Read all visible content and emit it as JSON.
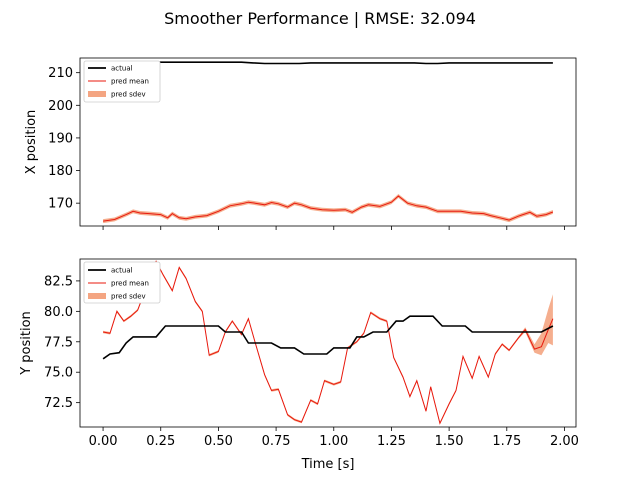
{
  "chart_data": {
    "type": "line",
    "title": "Smoother Performance | RMSE: 32.094",
    "xlabel": "Time [s]",
    "xlim": [
      -0.1,
      2.05
    ],
    "xticks": [
      "0.00",
      "0.25",
      "0.50",
      "0.75",
      "1.00",
      "1.25",
      "1.50",
      "1.75",
      "2.00"
    ],
    "colors": {
      "actual": "#000000",
      "pred_mean": "#e8190e",
      "pred_sdev": "#f4a582"
    },
    "panels": [
      {
        "ylabel": "X position",
        "ylim": [
          163,
          214.5
        ],
        "yticks": [
          "170",
          "180",
          "190",
          "200",
          "210"
        ],
        "legend_position": "top-left",
        "legend": [
          "actual",
          "pred mean",
          "pred sdev"
        ],
        "actual": {
          "x": [
            0.0,
            0.1,
            0.2,
            0.3,
            0.4,
            0.5,
            0.6,
            0.65,
            0.7,
            0.8,
            0.85,
            0.9,
            1.0,
            1.1,
            1.2,
            1.3,
            1.35,
            1.4,
            1.45,
            1.5,
            1.6,
            1.7,
            1.8,
            1.9,
            1.95
          ],
          "y": [
            212.5,
            213.0,
            213.2,
            213.2,
            213.2,
            213.2,
            213.2,
            213.0,
            212.8,
            212.8,
            212.8,
            213.0,
            213.0,
            213.0,
            213.0,
            213.0,
            213.0,
            212.8,
            212.8,
            213.0,
            213.0,
            213.0,
            213.0,
            213.0,
            213.0
          ]
        },
        "pred_mean": {
          "x": [
            0.0,
            0.05,
            0.1,
            0.13,
            0.16,
            0.2,
            0.25,
            0.28,
            0.3,
            0.33,
            0.36,
            0.4,
            0.45,
            0.5,
            0.55,
            0.6,
            0.63,
            0.66,
            0.7,
            0.73,
            0.76,
            0.8,
            0.83,
            0.86,
            0.9,
            0.95,
            1.0,
            1.05,
            1.08,
            1.12,
            1.15,
            1.2,
            1.25,
            1.28,
            1.32,
            1.36,
            1.4,
            1.45,
            1.5,
            1.55,
            1.6,
            1.65,
            1.68,
            1.72,
            1.76,
            1.8,
            1.82,
            1.85,
            1.88,
            1.92,
            1.95
          ],
          "y": [
            164.5,
            165.0,
            166.5,
            167.5,
            167.0,
            166.8,
            166.5,
            165.5,
            166.8,
            165.5,
            165.2,
            165.8,
            166.2,
            167.5,
            169.2,
            169.8,
            170.3,
            170.0,
            169.5,
            170.2,
            169.8,
            168.8,
            170.0,
            169.5,
            168.5,
            168.0,
            167.8,
            168.0,
            167.2,
            168.8,
            169.5,
            169.0,
            170.3,
            172.2,
            170.0,
            169.2,
            168.8,
            167.5,
            167.5,
            167.5,
            167.0,
            166.8,
            166.2,
            165.5,
            164.8,
            166.0,
            166.5,
            167.2,
            166.0,
            166.5,
            167.3
          ]
        },
        "pred_sdev": {
          "y_lower_offset": -0.6,
          "y_upper_offset": 0.6
        }
      },
      {
        "ylabel": "Y position",
        "ylim": [
          70.5,
          84.3
        ],
        "yticks": [
          "72.5",
          "75.0",
          "77.5",
          "80.0",
          "82.5"
        ],
        "legend_position": "top-left",
        "legend": [
          "actual",
          "pred mean",
          "pred sdev"
        ],
        "actual": {
          "x": [
            0.0,
            0.03,
            0.07,
            0.1,
            0.13,
            0.2,
            0.23,
            0.27,
            0.3,
            0.35,
            0.4,
            0.45,
            0.5,
            0.53,
            0.57,
            0.6,
            0.63,
            0.67,
            0.7,
            0.73,
            0.77,
            0.8,
            0.83,
            0.87,
            0.9,
            0.93,
            0.97,
            1.0,
            1.03,
            1.07,
            1.1,
            1.13,
            1.17,
            1.2,
            1.23,
            1.27,
            1.3,
            1.33,
            1.37,
            1.4,
            1.43,
            1.47,
            1.5,
            1.53,
            1.57,
            1.6,
            1.7,
            1.8,
            1.9,
            1.95
          ],
          "y": [
            76.1,
            76.5,
            76.6,
            77.4,
            77.9,
            77.9,
            77.9,
            78.8,
            78.8,
            78.8,
            78.8,
            78.8,
            78.8,
            78.3,
            78.3,
            78.3,
            77.4,
            77.4,
            77.4,
            77.4,
            77.0,
            77.0,
            77.0,
            76.5,
            76.5,
            76.5,
            76.5,
            77.0,
            77.0,
            77.0,
            77.9,
            77.9,
            78.3,
            78.3,
            78.3,
            79.2,
            79.2,
            79.6,
            79.6,
            79.6,
            79.6,
            78.8,
            78.8,
            78.8,
            78.8,
            78.3,
            78.3,
            78.3,
            78.3,
            78.8
          ]
        },
        "pred_mean": {
          "x": [
            0.0,
            0.03,
            0.06,
            0.09,
            0.12,
            0.15,
            0.18,
            0.2,
            0.23,
            0.26,
            0.3,
            0.33,
            0.36,
            0.4,
            0.43,
            0.46,
            0.5,
            0.53,
            0.56,
            0.6,
            0.63,
            0.66,
            0.7,
            0.73,
            0.76,
            0.8,
            0.83,
            0.86,
            0.9,
            0.93,
            0.96,
            1.0,
            1.03,
            1.06,
            1.1,
            1.13,
            1.16,
            1.2,
            1.23,
            1.26,
            1.3,
            1.33,
            1.36,
            1.4,
            1.42,
            1.46,
            1.5,
            1.53,
            1.56,
            1.6,
            1.63,
            1.67,
            1.7,
            1.73,
            1.76,
            1.8,
            1.83,
            1.87,
            1.9,
            1.93,
            1.95
          ],
          "y": [
            78.3,
            78.2,
            80.0,
            79.2,
            79.6,
            80.1,
            81.6,
            82.9,
            84.1,
            83.0,
            81.7,
            83.6,
            82.7,
            80.8,
            80.0,
            76.4,
            76.7,
            78.3,
            79.2,
            78.1,
            79.4,
            77.4,
            74.8,
            73.5,
            73.6,
            71.5,
            71.1,
            70.9,
            72.7,
            72.4,
            74.3,
            74.0,
            74.2,
            77.0,
            77.5,
            78.2,
            79.9,
            79.4,
            79.2,
            76.2,
            74.6,
            73.0,
            74.3,
            71.8,
            73.8,
            70.8,
            72.4,
            73.5,
            76.3,
            74.5,
            76.3,
            74.6,
            76.5,
            77.3,
            76.8,
            77.8,
            78.5,
            76.9,
            77.1,
            78.5,
            79.4
          ],
          "sdev_upper": [
            78.4,
            78.3,
            80.1,
            79.3,
            79.7,
            80.2,
            81.7,
            83.0,
            84.2,
            83.1,
            81.8,
            83.7,
            82.8,
            80.9,
            80.1,
            76.5,
            76.8,
            78.4,
            79.3,
            78.2,
            79.5,
            77.5,
            74.9,
            73.6,
            73.7,
            71.6,
            71.2,
            71.0,
            72.8,
            72.5,
            74.4,
            74.1,
            74.3,
            77.1,
            77.6,
            78.3,
            80.0,
            79.5,
            79.3,
            76.3,
            74.7,
            73.1,
            74.4,
            71.9,
            73.9,
            70.9,
            72.5,
            73.6,
            76.4,
            74.6,
            76.4,
            74.7,
            76.6,
            77.4,
            76.9,
            77.9,
            78.7,
            77.3,
            78.2,
            80.2,
            81.4
          ],
          "sdev_lower": [
            78.2,
            78.1,
            79.9,
            79.1,
            79.5,
            80.0,
            81.5,
            82.8,
            84.0,
            82.9,
            81.6,
            83.5,
            82.6,
            80.7,
            79.9,
            76.3,
            76.6,
            78.2,
            79.1,
            78.0,
            79.3,
            77.3,
            74.7,
            73.4,
            73.5,
            71.4,
            71.0,
            70.8,
            72.6,
            72.3,
            74.2,
            73.9,
            74.1,
            76.9,
            77.4,
            78.1,
            79.8,
            79.3,
            79.1,
            76.1,
            74.5,
            72.9,
            74.2,
            71.7,
            73.7,
            70.7,
            72.3,
            73.4,
            76.2,
            74.4,
            76.2,
            74.5,
            76.4,
            77.2,
            76.7,
            77.7,
            78.3,
            76.6,
            76.4,
            77.4,
            77.2
          ]
        }
      }
    ]
  }
}
